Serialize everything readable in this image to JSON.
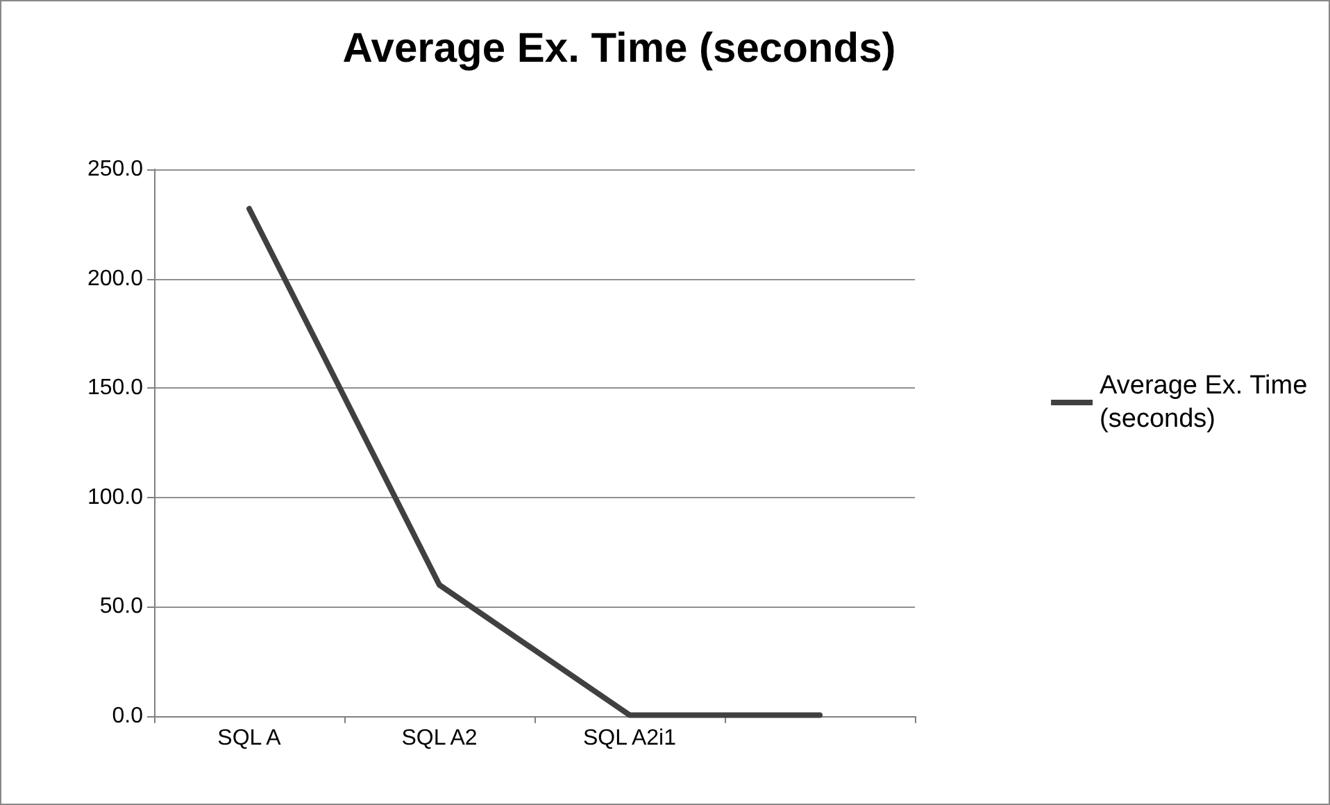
{
  "chart_data": {
    "type": "line",
    "title": "Average Ex. Time (seconds)",
    "categories": [
      "SQL A",
      "SQL A2",
      "SQL A2i1",
      null
    ],
    "series": [
      {
        "name": "Average Ex. Time (seconds)",
        "color": "#404040",
        "values": [
          232,
          60,
          0.5,
          0.5
        ]
      }
    ],
    "ylim": [
      0,
      250
    ],
    "yticks": [
      {
        "value": 0,
        "label": "0.0"
      },
      {
        "value": 50,
        "label": "50.0"
      },
      {
        "value": 100,
        "label": "100.0"
      },
      {
        "value": 150,
        "label": "150.0"
      },
      {
        "value": 200,
        "label": "200.0"
      },
      {
        "value": 250,
        "label": "250.0"
      }
    ],
    "grid": "y",
    "legend": "right",
    "marker": "none",
    "line_style": "solid"
  }
}
